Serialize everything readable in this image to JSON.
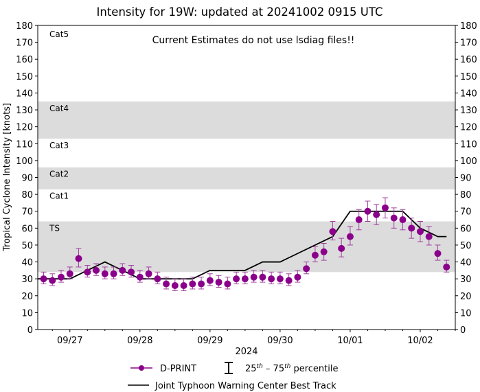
{
  "chart_data": {
    "type": "scatter",
    "title": "Intensity for 19W: updated at 20241002 0915 UTC",
    "annotation": "Current Estimates do not use lsdiag files!!",
    "xlabel": "2024",
    "ylabel": "Tropical Cyclone Intensity [knots]",
    "ylim": [
      0,
      180
    ],
    "xlim": [
      "2024-09-26 13Z",
      "2024-10-02 12Z"
    ],
    "yticks": [
      0,
      10,
      20,
      30,
      40,
      50,
      60,
      70,
      80,
      90,
      100,
      110,
      120,
      130,
      140,
      150,
      160,
      170,
      180
    ],
    "xticks": [
      {
        "t": "2024-09-27 00Z",
        "label": "09/27"
      },
      {
        "t": "2024-09-28 00Z",
        "label": "09/28"
      },
      {
        "t": "2024-09-29 00Z",
        "label": "09/29"
      },
      {
        "t": "2024-09-30 00Z",
        "label": "09/30"
      },
      {
        "t": "2024-10-01 00Z",
        "label": "10/01"
      },
      {
        "t": "2024-10-02 00Z",
        "label": "10/02"
      }
    ],
    "grid": false,
    "legend_placement": "bottom-center",
    "category_bands": [
      {
        "label": "TS",
        "from": 34,
        "to": 64,
        "shaded": true
      },
      {
        "label": "Cat1",
        "from": 64,
        "to": 83,
        "shaded": false
      },
      {
        "label": "Cat2",
        "from": 83,
        "to": 96,
        "shaded": true
      },
      {
        "label": "Cat3",
        "from": 96,
        "to": 113,
        "shaded": false
      },
      {
        "label": "Cat4",
        "from": 113,
        "to": 135,
        "shaded": true
      },
      {
        "label": "Cat5",
        "from": 135,
        "to": 180,
        "shaded": false
      }
    ],
    "series": [
      {
        "name": "D-PRINT",
        "color": "#8b008b",
        "x": [
          "2024-09-26 15Z",
          "2024-09-26 18Z",
          "2024-09-26 21Z",
          "2024-09-27 00Z",
          "2024-09-27 03Z",
          "2024-09-27 06Z",
          "2024-09-27 09Z",
          "2024-09-27 12Z",
          "2024-09-27 15Z",
          "2024-09-27 18Z",
          "2024-09-27 21Z",
          "2024-09-28 00Z",
          "2024-09-28 03Z",
          "2024-09-28 06Z",
          "2024-09-28 09Z",
          "2024-09-28 12Z",
          "2024-09-28 15Z",
          "2024-09-28 18Z",
          "2024-09-28 21Z",
          "2024-09-29 00Z",
          "2024-09-29 03Z",
          "2024-09-29 06Z",
          "2024-09-29 09Z",
          "2024-09-29 12Z",
          "2024-09-29 15Z",
          "2024-09-29 18Z",
          "2024-09-29 21Z",
          "2024-09-30 00Z",
          "2024-09-30 03Z",
          "2024-09-30 06Z",
          "2024-09-30 09Z",
          "2024-09-30 12Z",
          "2024-09-30 15Z",
          "2024-09-30 18Z",
          "2024-09-30 21Z",
          "2024-10-01 00Z",
          "2024-10-01 03Z",
          "2024-10-01 06Z",
          "2024-10-01 09Z",
          "2024-10-01 12Z",
          "2024-10-01 15Z",
          "2024-10-01 18Z",
          "2024-10-01 21Z",
          "2024-10-02 00Z",
          "2024-10-02 03Z",
          "2024-10-02 06Z",
          "2024-10-02 09Z"
        ],
        "values": [
          30,
          29,
          31,
          33,
          42,
          34,
          35,
          33,
          33,
          35,
          34,
          31,
          33,
          30,
          27,
          26,
          26,
          27,
          27,
          29,
          28,
          27,
          30,
          30,
          31,
          31,
          30,
          30,
          29,
          31,
          36,
          44,
          46,
          58,
          48,
          55,
          65,
          70,
          68,
          72,
          66,
          65,
          60,
          58,
          55,
          45,
          37
        ],
        "p25": [
          27,
          26,
          28,
          30,
          37,
          31,
          32,
          30,
          30,
          32,
          31,
          28,
          30,
          27,
          24,
          23,
          23,
          24,
          24,
          26,
          25,
          24,
          27,
          27,
          28,
          28,
          27,
          27,
          26,
          28,
          33,
          40,
          41,
          53,
          43,
          50,
          59,
          64,
          62,
          66,
          60,
          59,
          54,
          52,
          50,
          41,
          34
        ],
        "p75": [
          34,
          33,
          35,
          37,
          48,
          38,
          39,
          37,
          37,
          39,
          38,
          35,
          37,
          34,
          31,
          30,
          30,
          31,
          31,
          33,
          32,
          31,
          34,
          34,
          35,
          35,
          34,
          34,
          33,
          35,
          40,
          49,
          51,
          64,
          54,
          61,
          71,
          76,
          74,
          78,
          72,
          71,
          66,
          64,
          61,
          50,
          41
        ]
      },
      {
        "name": "Joint Typhoon Warning Center Best Track",
        "color": "#000000",
        "x": [
          "2024-09-26 13Z",
          "2024-09-27 00Z",
          "2024-09-27 06Z",
          "2024-09-27 12Z",
          "2024-09-27 18Z",
          "2024-09-28 00Z",
          "2024-09-28 18Z",
          "2024-09-29 00Z",
          "2024-09-29 12Z",
          "2024-09-29 18Z",
          "2024-09-30 00Z",
          "2024-09-30 06Z",
          "2024-09-30 12Z",
          "2024-09-30 18Z",
          "2024-10-01 00Z",
          "2024-10-01 18Z",
          "2024-10-02 00Z",
          "2024-10-02 06Z",
          "2024-10-02 09Z"
        ],
        "values": [
          30,
          30,
          35,
          40,
          35,
          30,
          30,
          35,
          35,
          40,
          40,
          45,
          50,
          55,
          70,
          70,
          60,
          55,
          55
        ]
      }
    ],
    "legend": {
      "dprint": "D-PRINT",
      "percentile_pre": "25",
      "percentile_sup1": "th",
      "percentile_mid": " – 75",
      "percentile_sup2": "th",
      "percentile_post": " percentile",
      "best_track": "Joint Typhoon Warning Center Best Track"
    }
  }
}
